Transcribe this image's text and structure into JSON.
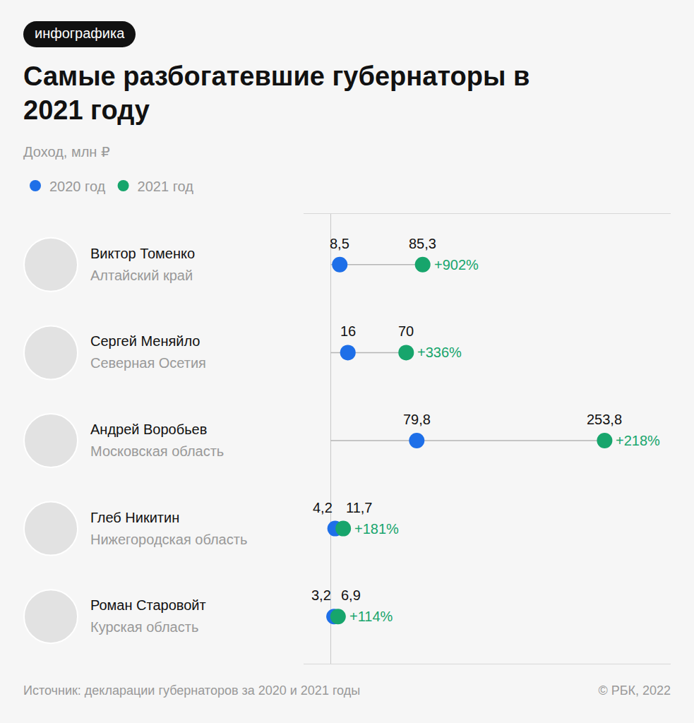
{
  "chart_data": {
    "type": "dumbbell",
    "badge": "инфографика",
    "title": "Самые разбогатевшие губернаторы в 2021 году",
    "subtitle": "Доход, млн ₽",
    "categories": [
      "Виктор Томенко",
      "Сергей Меняйло",
      "Андрей Воробьев",
      "Глеб Никитин",
      "Роман Старовойт"
    ],
    "regions": [
      "Алтайский край",
      "Северная Осетия",
      "Московская область",
      "Нижегородская область",
      "Курская область"
    ],
    "series": [
      {
        "name": "2020 год",
        "color": "#1e6fe8",
        "values": [
          8.5,
          16,
          79.8,
          4.2,
          3.2
        ],
        "value_labels": [
          "8,5",
          "16",
          "79,8",
          "4,2",
          "3,2"
        ]
      },
      {
        "name": "2021 год",
        "color": "#17a56c",
        "values": [
          85.3,
          70,
          253.8,
          11.7,
          6.9
        ],
        "value_labels": [
          "85,3",
          "70",
          "253,8",
          "11,7",
          "6,9"
        ]
      }
    ],
    "change": [
      902,
      336,
      218,
      181,
      114
    ],
    "change_labels": [
      "+902%",
      "+336%",
      "+218%",
      "+181%",
      "+114%"
    ],
    "orientation": "horizontal",
    "xlim": [
      -25,
      315
    ],
    "xticks": [
      0
    ],
    "tick_labels": false,
    "grid": true,
    "data_labels": true,
    "legend": "top left",
    "marker": "circle",
    "source": "Источник: декларации губернаторов за 2020 и 2021 годы",
    "credit": "© РБК, 2022"
  }
}
